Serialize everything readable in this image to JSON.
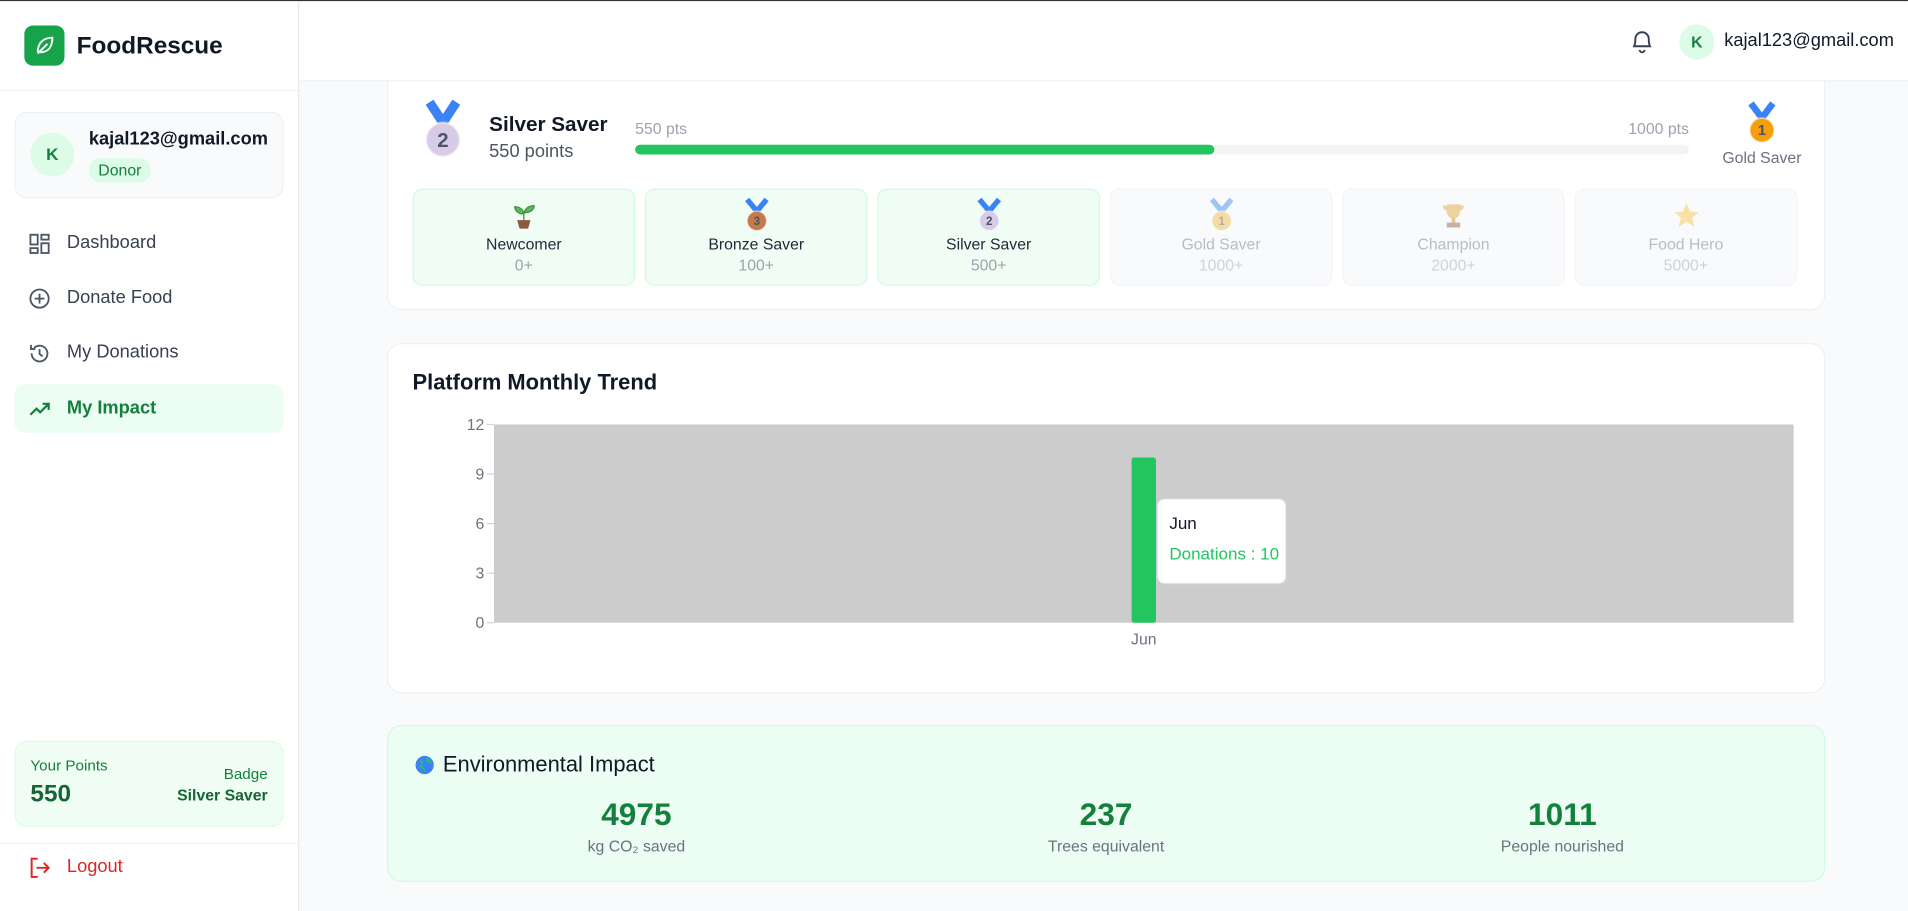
{
  "sidebar": {
    "brand": "FoodRescue",
    "user": {
      "avatar": "K",
      "email": "kajal123@gmail.com",
      "role": "Donor"
    },
    "nav": [
      {
        "label": "Dashboard",
        "active": false
      },
      {
        "label": "Donate Food",
        "active": false
      },
      {
        "label": "My Donations",
        "active": false
      },
      {
        "label": "My Impact",
        "active": true
      }
    ],
    "points": {
      "label": "Your Points",
      "value": 550,
      "badge_label": "Badge",
      "badge": "Silver Saver"
    },
    "logout": "Logout"
  },
  "header": {
    "avatar": "K",
    "email": "kajal123@gmail.com"
  },
  "badge_progress": {
    "medal": "2",
    "current": "Silver Saver",
    "points": "550 points",
    "progress": {
      "value": 550,
      "label": "550 pts",
      "max": 1000,
      "max_label": "1000 pts"
    },
    "next_medal": "1",
    "next": "Gold Saver",
    "tiers": [
      {
        "name": "Newcomer",
        "threshold": "0+",
        "achieved": true
      },
      {
        "name": "Bronze Saver",
        "threshold": "100+",
        "achieved": true,
        "medal": "3"
      },
      {
        "name": "Silver Saver",
        "threshold": "500+",
        "achieved": true,
        "medal": "2"
      },
      {
        "name": "Gold Saver",
        "threshold": "1000+",
        "achieved": false,
        "medal": "1"
      },
      {
        "name": "Champion",
        "threshold": "2000+",
        "achieved": false
      },
      {
        "name": "Food Hero",
        "threshold": "5000+",
        "achieved": false
      }
    ]
  },
  "chart_data": {
    "type": "bar",
    "title": "Platform Monthly Trend",
    "categories": [
      "Jun"
    ],
    "series": [
      {
        "name": "Donations",
        "color": "#22c55e",
        "values": [
          10
        ]
      }
    ],
    "ylim": [
      0,
      12
    ],
    "yticks": [
      0,
      3,
      6,
      9,
      12
    ],
    "tooltip": "Donations : 10"
  },
  "impact": {
    "title": "Environmental Impact",
    "stats": [
      {
        "value": 4975,
        "label": "kg CO₂ saved"
      },
      {
        "value": 237,
        "label": "Trees equivalent"
      },
      {
        "value": 1011,
        "label": "People nourished"
      }
    ]
  }
}
